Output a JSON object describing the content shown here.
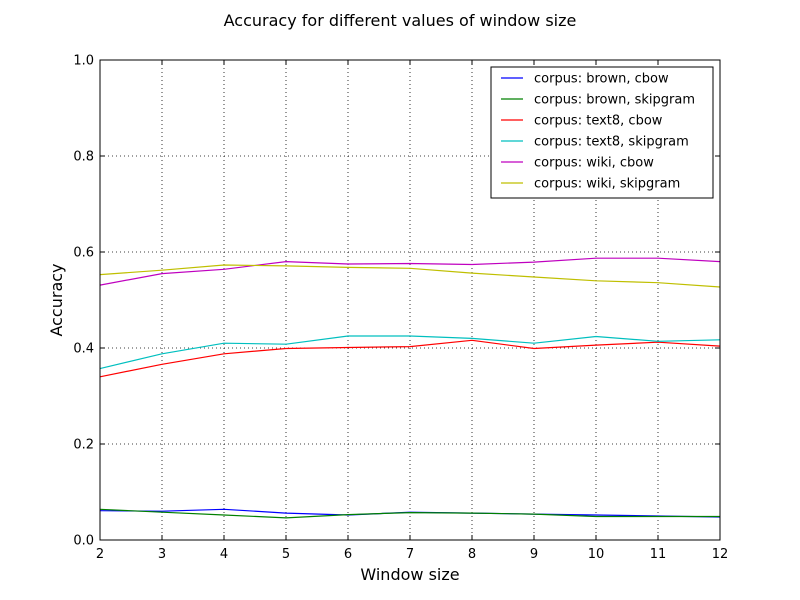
{
  "chart_data": {
    "type": "line",
    "title": "Accuracy for different values of window size",
    "xlabel": "Window size",
    "ylabel": "Accuracy",
    "xlim": [
      2,
      12
    ],
    "ylim": [
      0.0,
      1.0
    ],
    "x_ticks": [
      "2",
      "3",
      "4",
      "5",
      "6",
      "7",
      "8",
      "9",
      "10",
      "11",
      "12"
    ],
    "y_ticks": [
      "0.0",
      "0.2",
      "0.4",
      "0.6",
      "0.8",
      "1.0"
    ],
    "grid": true,
    "legend_position": "top-right",
    "x": [
      2,
      3,
      4,
      5,
      6,
      7,
      8,
      9,
      10,
      11,
      12
    ],
    "series": [
      {
        "name": "corpus: brown, cbow",
        "color": "#0000ff",
        "values": [
          0.061,
          0.06,
          0.064,
          0.056,
          0.052,
          0.058,
          0.056,
          0.054,
          0.052,
          0.05,
          0.048
        ]
      },
      {
        "name": "corpus: brown, skipgram",
        "color": "#008000",
        "values": [
          0.064,
          0.058,
          0.052,
          0.046,
          0.053,
          0.057,
          0.056,
          0.054,
          0.049,
          0.049,
          0.049
        ]
      },
      {
        "name": "corpus: text8, cbow",
        "color": "#ff0000",
        "values": [
          0.34,
          0.366,
          0.388,
          0.399,
          0.401,
          0.403,
          0.416,
          0.399,
          0.406,
          0.412,
          0.404
        ]
      },
      {
        "name": "corpus: text8, skipgram",
        "color": "#00bfbf",
        "values": [
          0.357,
          0.388,
          0.41,
          0.408,
          0.425,
          0.425,
          0.42,
          0.41,
          0.424,
          0.414,
          0.417
        ]
      },
      {
        "name": "corpus: wiki, cbow",
        "color": "#bf00bf",
        "values": [
          0.531,
          0.555,
          0.564,
          0.58,
          0.575,
          0.576,
          0.574,
          0.579,
          0.587,
          0.587,
          0.58
        ]
      },
      {
        "name": "corpus: wiki, skipgram",
        "color": "#bfbf00",
        "values": [
          0.553,
          0.562,
          0.573,
          0.571,
          0.568,
          0.566,
          0.556,
          0.548,
          0.54,
          0.536,
          0.527
        ]
      }
    ]
  }
}
